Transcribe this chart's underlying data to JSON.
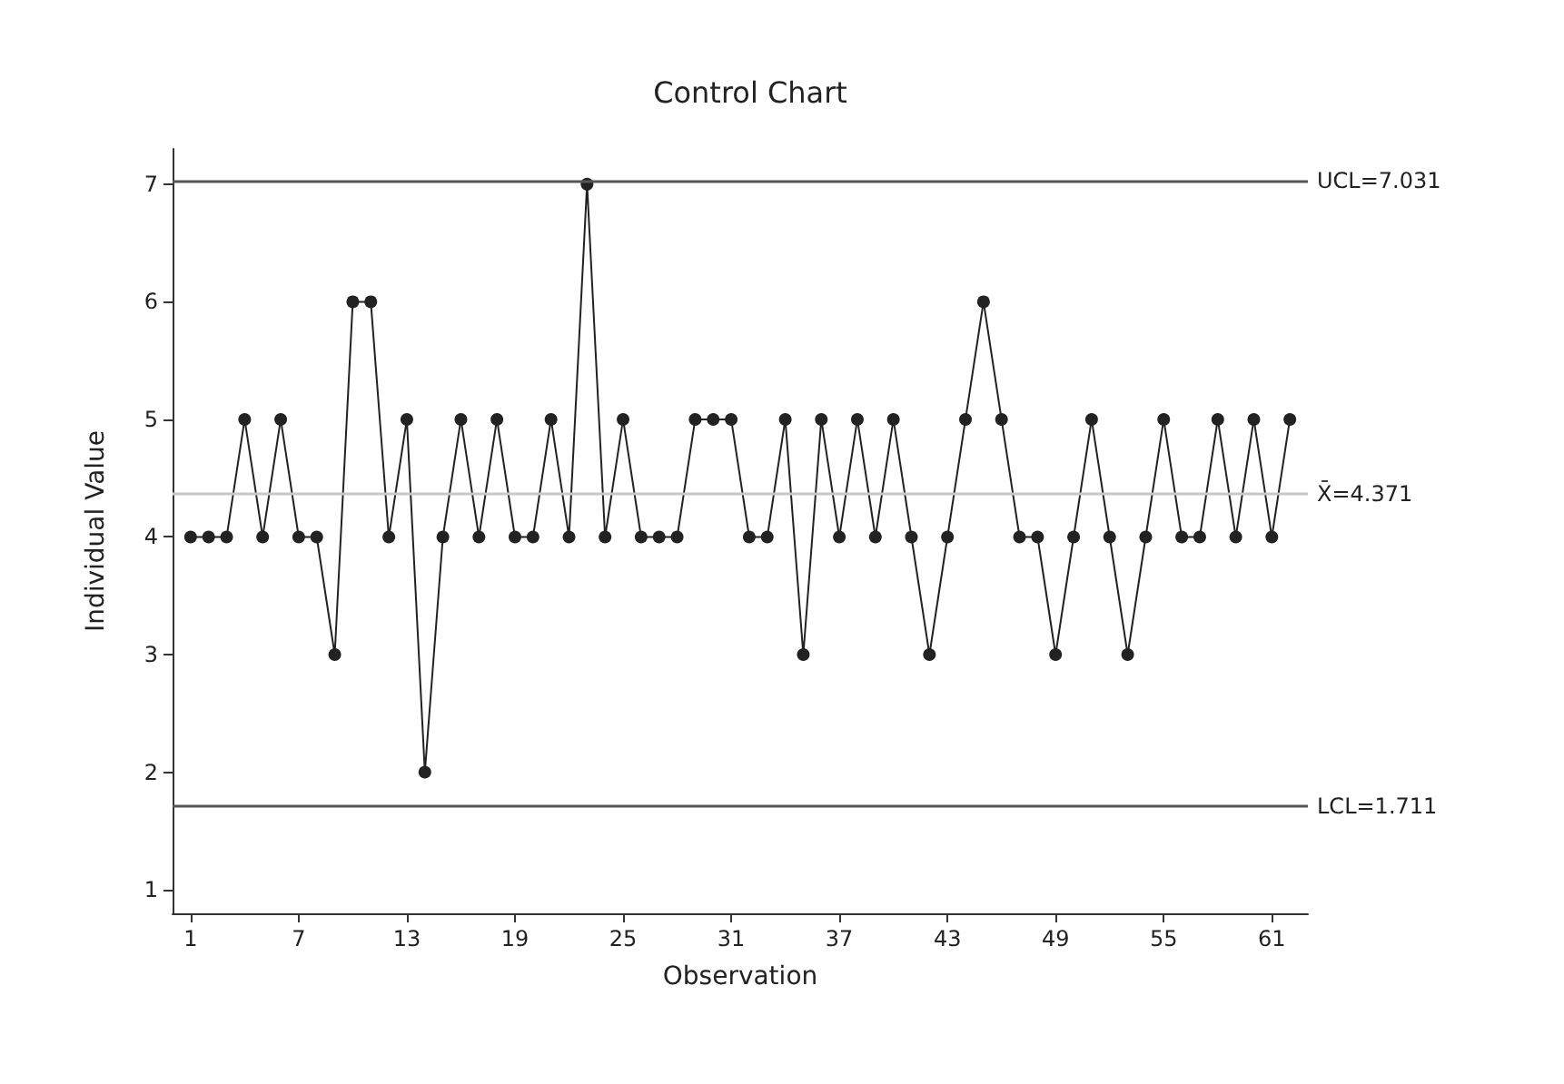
{
  "chart_data": {
    "type": "line",
    "title": "Control Chart",
    "xlabel": "Observation",
    "ylabel": "Individual Value",
    "x": [
      1,
      2,
      3,
      4,
      5,
      6,
      7,
      8,
      9,
      10,
      11,
      12,
      13,
      14,
      15,
      16,
      17,
      18,
      19,
      20,
      21,
      22,
      23,
      24,
      25,
      26,
      27,
      28,
      29,
      30,
      31,
      32,
      33,
      34,
      35,
      36,
      37,
      38,
      39,
      40,
      41,
      42,
      43,
      44,
      45,
      46,
      47,
      48,
      49,
      50,
      51,
      52,
      53,
      54,
      55,
      56,
      57,
      58,
      59,
      60,
      61,
      62
    ],
    "series": [
      {
        "color": "#222222",
        "values": [
          4,
          4,
          4,
          5,
          4,
          5,
          4,
          4,
          3,
          6,
          6,
          4,
          5,
          2,
          4,
          5,
          4,
          5,
          4,
          4,
          5,
          4,
          7,
          4,
          5,
          4,
          4,
          4,
          5,
          5,
          5,
          4,
          4,
          5,
          3,
          5,
          4,
          5,
          4,
          5,
          4,
          3,
          4,
          5,
          6,
          5,
          4,
          4,
          3,
          4,
          5,
          4,
          3,
          4,
          5,
          4,
          4,
          5,
          4,
          5,
          4,
          5
        ]
      }
    ],
    "xlim": [
      0,
      63
    ],
    "xticks": [
      1,
      7,
      13,
      19,
      25,
      31,
      37,
      43,
      49,
      55,
      61
    ],
    "ylim": [
      0.8,
      7.3
    ],
    "yticks": [
      1,
      2,
      3,
      4,
      5,
      6,
      7
    ],
    "ref_lines": [
      {
        "axis": "y",
        "value": 7.031,
        "label": "UCL=7.031",
        "color": "#555555"
      },
      {
        "axis": "y",
        "value": 4.371,
        "label": "X̄=4.371",
        "color": "#c8c8c8"
      },
      {
        "axis": "y",
        "value": 1.711,
        "label": "LCL=1.711",
        "color": "#555555"
      }
    ],
    "grid": false,
    "marker": "circle",
    "line_style": "solid"
  }
}
